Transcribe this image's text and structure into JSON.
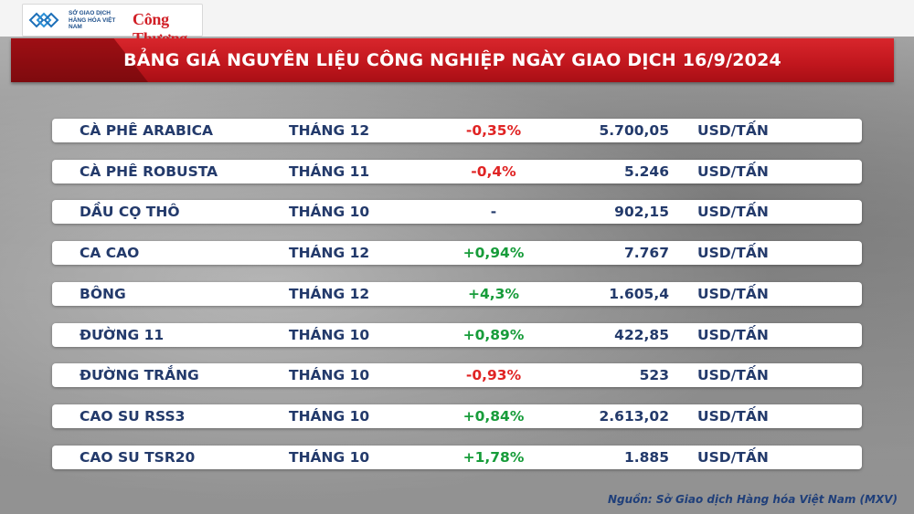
{
  "brand": {
    "exchange_logo_text": "SỞ GIAO DỊCH HÀNG HÓA VIỆT NAM",
    "publisher": "Công Thương"
  },
  "title": "BẢNG GIÁ NGUYÊN LIỆU CÔNG NGHIỆP NGÀY GIAO DỊCH 16/9/2024",
  "colors": {
    "accent_red": "#c0161d",
    "negative": "#e02424",
    "positive": "#179c3a",
    "text_navy": "#233a6b"
  },
  "rows": [
    {
      "name": "CÀ PHÊ ARABICA",
      "month": "THÁNG 12",
      "change": "-0,35%",
      "direction": "neg",
      "price": "5.700,05",
      "unit": "USD/TẤN"
    },
    {
      "name": "CÀ PHÊ ROBUSTA",
      "month": "THÁNG 11",
      "change": "-0,4%",
      "direction": "neg",
      "price": "5.246",
      "unit": "USD/TẤN"
    },
    {
      "name": "DẦU CỌ THÔ",
      "month": "THÁNG 10",
      "change": "-",
      "direction": "neu",
      "price": "902,15",
      "unit": "USD/TẤN"
    },
    {
      "name": "CA CAO",
      "month": "THÁNG 12",
      "change": "+0,94%",
      "direction": "pos",
      "price": "7.767",
      "unit": "USD/TẤN"
    },
    {
      "name": "BÔNG",
      "month": "THÁNG 12",
      "change": "+4,3%",
      "direction": "pos",
      "price": "1.605,4",
      "unit": "USD/TẤN"
    },
    {
      "name": "ĐƯỜNG 11",
      "month": "THÁNG 10",
      "change": "+0,89%",
      "direction": "pos",
      "price": "422,85",
      "unit": "USD/TẤN"
    },
    {
      "name": "ĐƯỜNG TRẮNG",
      "month": "THÁNG 10",
      "change": "-0,93%",
      "direction": "neg",
      "price": "523",
      "unit": "USD/TẤN"
    },
    {
      "name": "CAO SU RSS3",
      "month": "THÁNG 10",
      "change": "+0,84%",
      "direction": "pos",
      "price": "2.613,02",
      "unit": "USD/TẤN"
    },
    {
      "name": "CAO SU TSR20",
      "month": "THÁNG 10",
      "change": "+1,78%",
      "direction": "pos",
      "price": "1.885",
      "unit": "USD/TẤN"
    }
  ],
  "source": "Nguồn: Sở Giao dịch Hàng hóa Việt Nam (MXV)"
}
